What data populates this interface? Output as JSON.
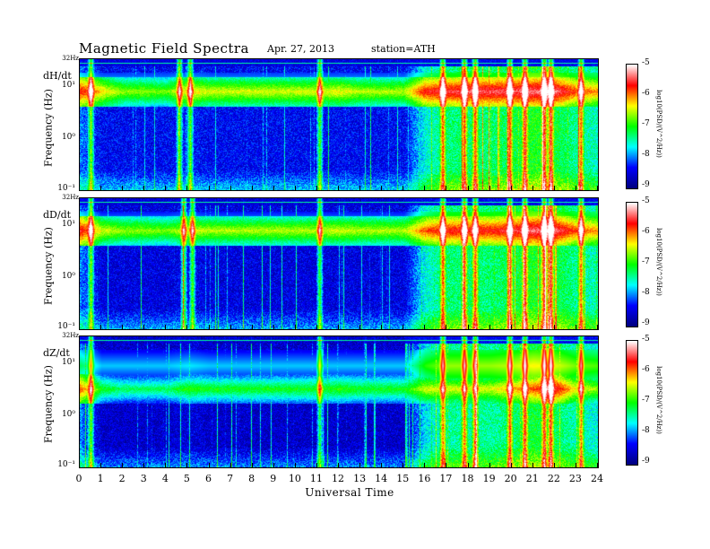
{
  "header": {
    "title": "Magnetic Field Spectra",
    "date": "Apr. 27, 2013",
    "station": "station=ATH"
  },
  "x_axis": {
    "label": "Universal Time",
    "ticks": [
      "0",
      "1",
      "2",
      "3",
      "4",
      "5",
      "6",
      "7",
      "8",
      "9",
      "10",
      "11",
      "12",
      "13",
      "14",
      "15",
      "16",
      "17",
      "18",
      "19",
      "20",
      "21",
      "22",
      "23",
      "24"
    ]
  },
  "colorbar": {
    "ticks": [
      "-5",
      "-6",
      "-7",
      "-8",
      "-9"
    ],
    "label": "log10(PSD/(V^2/Hz))"
  },
  "panels": [
    {
      "component": "dH/dt",
      "ylabel": "Frequency (Hz)",
      "top_tick": "32Hz",
      "yticks": [
        "10¹",
        "10⁰",
        "10⁻¹"
      ]
    },
    {
      "component": "dD/dt",
      "ylabel": "Frequency (Hz)",
      "top_tick": "32Hz",
      "yticks": [
        "10¹",
        "10⁰",
        "10⁻¹"
      ]
    },
    {
      "component": "dZ/dt",
      "ylabel": "Frequency (Hz)",
      "top_tick": "32Hz",
      "yticks": [
        "10¹",
        "10⁰",
        "10⁻¹"
      ]
    }
  ],
  "chart_data": [
    {
      "type": "heatmap",
      "component": "dH/dt",
      "x_range_hours": [
        0,
        24
      ],
      "y_range_hz": [
        0.1,
        32
      ],
      "y_scale": "log",
      "color_range": [
        -9,
        -5
      ],
      "colormap": [
        "#000080",
        "#0000ff",
        "#00ffff",
        "#00ff00",
        "#ffff00",
        "#ff0000",
        "#ffffff"
      ],
      "background_level": -8.2,
      "schumann_band_hz": 7.8,
      "schumann_level_by_hour": [
        -5.6,
        -6.2,
        -6.6,
        -6.6,
        -6.7,
        -6.2,
        -6.4,
        -6.4,
        -6.4,
        -6.4,
        -6.4,
        -6.4,
        -6.3,
        -6.5,
        -6.5,
        -6.5,
        -5.6,
        -5.5,
        -5.4,
        -5.4,
        -5.4,
        -5.3,
        -5.3,
        -5.8,
        -6.0
      ],
      "broadband_level_by_hour": [
        -8.0,
        -8.4,
        -8.4,
        -8.4,
        -8.4,
        -8.3,
        -8.4,
        -8.4,
        -8.4,
        -8.4,
        -8.4,
        -8.4,
        -8.4,
        -8.4,
        -8.4,
        -8.4,
        -7.6,
        -7.3,
        -7.3,
        -7.3,
        -7.2,
        -7.0,
        -7.1,
        -7.4,
        -7.5
      ],
      "bursts_hours": [
        0.5,
        4.6,
        5.1,
        11.1,
        16.8,
        17.8,
        18.3,
        19.9,
        20.6,
        21.5,
        21.8,
        23.2
      ]
    },
    {
      "type": "heatmap",
      "component": "dD/dt",
      "x_range_hours": [
        0,
        24
      ],
      "y_range_hz": [
        0.1,
        32
      ],
      "y_scale": "log",
      "color_range": [
        -9,
        -5
      ],
      "background_level": -8.3,
      "schumann_band_hz": 7.8,
      "schumann_level_by_hour": [
        -5.5,
        -6.4,
        -6.6,
        -6.6,
        -6.7,
        -6.4,
        -6.5,
        -6.5,
        -6.5,
        -6.5,
        -6.5,
        -6.5,
        -6.4,
        -6.5,
        -6.5,
        -6.5,
        -5.8,
        -5.6,
        -5.6,
        -5.6,
        -5.5,
        -5.3,
        -5.3,
        -5.8,
        -6.0
      ],
      "broadband_level_by_hour": [
        -8.0,
        -8.5,
        -8.5,
        -8.5,
        -8.5,
        -8.4,
        -8.5,
        -8.5,
        -8.5,
        -8.5,
        -8.5,
        -8.5,
        -8.5,
        -8.5,
        -8.5,
        -8.5,
        -7.6,
        -7.3,
        -7.3,
        -7.3,
        -7.2,
        -7.0,
        -7.1,
        -7.4,
        -7.5
      ],
      "bursts_hours": [
        0.5,
        4.8,
        5.2,
        11.1,
        16.8,
        17.8,
        18.3,
        19.9,
        20.6,
        21.5,
        21.8,
        23.2
      ]
    },
    {
      "type": "heatmap",
      "component": "dZ/dt",
      "x_range_hours": [
        0,
        24
      ],
      "y_range_hz": [
        0.1,
        32
      ],
      "y_scale": "log",
      "color_range": [
        -9,
        -5
      ],
      "background_level": -8.4,
      "schumann_band_hz": 3.2,
      "schumann_level_by_hour": [
        -5.8,
        -7.0,
        -7.2,
        -7.2,
        -7.2,
        -6.9,
        -7.0,
        -7.0,
        -7.0,
        -7.0,
        -7.0,
        -7.0,
        -6.9,
        -7.0,
        -7.0,
        -7.0,
        -6.4,
        -6.4,
        -6.4,
        -6.4,
        -6.1,
        -5.8,
        -5.5,
        -6.3,
        -6.6
      ],
      "broadband_level_by_hour": [
        -8.0,
        -8.6,
        -8.6,
        -8.6,
        -8.6,
        -8.5,
        -8.6,
        -8.6,
        -8.6,
        -8.6,
        -8.6,
        -8.6,
        -8.6,
        -8.6,
        -8.6,
        -8.6,
        -7.7,
        -7.4,
        -7.4,
        -7.4,
        -7.3,
        -7.1,
        -7.2,
        -7.5,
        -7.6
      ],
      "bursts_hours": [
        0.5,
        11.1,
        16.8,
        17.8,
        18.3,
        19.9,
        20.6,
        21.5,
        21.8,
        23.2
      ]
    }
  ]
}
